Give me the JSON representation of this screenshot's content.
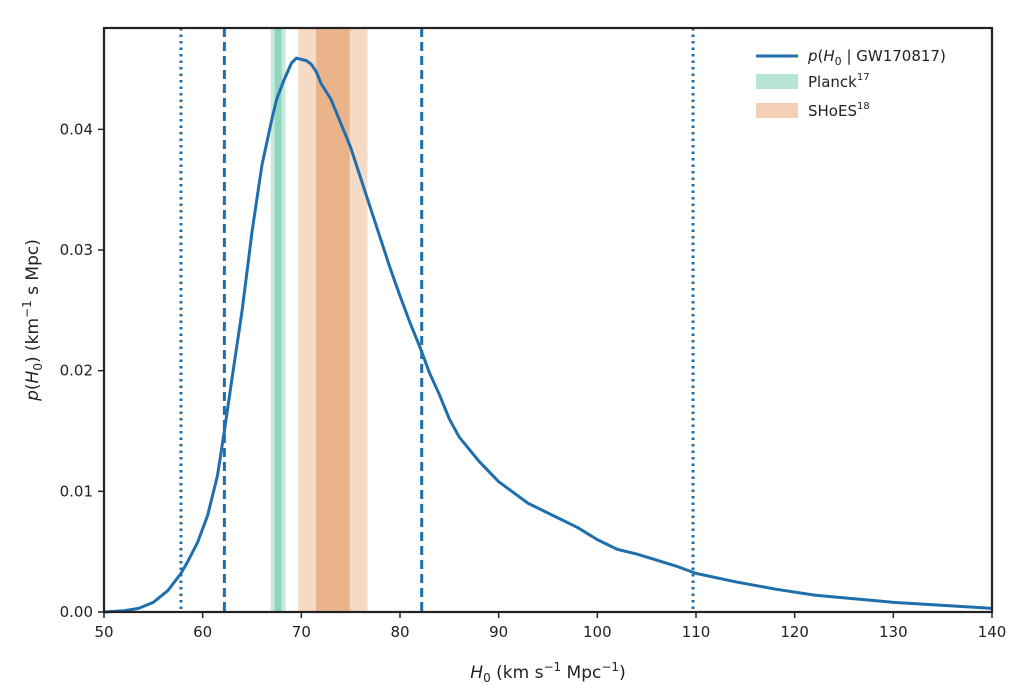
{
  "chart_data": {
    "type": "line",
    "xlabel": {
      "main": "H",
      "sub": "0",
      "paren_start": " (km s",
      "sup1": "−1",
      "mid": " Mpc",
      "sup2": "−1",
      "paren_end": ")"
    },
    "ylabel": {
      "p": "p",
      "paren_start": "(",
      "H": "H",
      "sub": "0",
      "paren_mid": ") (km",
      "sup": "−1",
      "paren_end": " s Mpc)"
    },
    "xlim": [
      50,
      140
    ],
    "ylim": [
      0,
      0.0484
    ],
    "xticks": [
      50,
      60,
      70,
      80,
      90,
      100,
      110,
      120,
      130,
      140
    ],
    "xtick_labels": [
      "50",
      "60",
      "70",
      "80",
      "90",
      "100",
      "110",
      "120",
      "130",
      "140"
    ],
    "yticks": [
      0,
      0.01,
      0.02,
      0.03,
      0.04
    ],
    "ytick_labels": [
      "0.00",
      "0.01",
      "0.02",
      "0.03",
      "0.04"
    ],
    "legend_position": "top-right",
    "grid": false,
    "series": [
      {
        "name": {
          "p": "p",
          "open": "(",
          "H": "H",
          "sub": "0",
          "rest": " | GW170817)"
        },
        "color": "#1f6fad",
        "x": [
          50,
          52,
          53.5,
          55,
          56.5,
          57.8,
          58.5,
          59.5,
          60.5,
          61.5,
          62.2,
          63,
          64,
          65,
          66,
          67,
          67.5,
          68.2,
          69,
          69.5,
          70,
          70.5,
          71,
          71.5,
          72,
          73,
          74,
          75,
          76,
          77,
          78,
          79,
          80,
          81,
          82,
          83,
          84,
          85,
          86,
          88,
          90,
          93,
          96,
          98,
          100,
          102,
          104,
          106,
          108,
          110,
          114,
          118,
          122,
          126,
          130,
          134,
          138,
          140
        ],
        "y": [
          0,
          0.0001,
          0.0003,
          0.0008,
          0.0018,
          0.0032,
          0.0042,
          0.0058,
          0.008,
          0.0113,
          0.015,
          0.0195,
          0.025,
          0.0315,
          0.037,
          0.0408,
          0.0425,
          0.044,
          0.0455,
          0.0459,
          0.0458,
          0.0457,
          0.0454,
          0.0448,
          0.0438,
          0.0425,
          0.0405,
          0.0385,
          0.036,
          0.0335,
          0.031,
          0.0285,
          0.0262,
          0.024,
          0.022,
          0.0198,
          0.018,
          0.016,
          0.0145,
          0.0125,
          0.0108,
          0.009,
          0.0078,
          0.007,
          0.006,
          0.0052,
          0.0048,
          0.0043,
          0.0038,
          0.0032,
          0.0025,
          0.0019,
          0.0014,
          0.0011,
          0.0008,
          0.0006,
          0.0004,
          0.0003
        ]
      }
    ],
    "vlines": [
      {
        "x": 57.8,
        "style": "dotted",
        "color": "#1f6fad"
      },
      {
        "x": 62.2,
        "style": "dashed",
        "color": "#1f6fad"
      },
      {
        "x": 82.2,
        "style": "dashed",
        "color": "#1f6fad"
      },
      {
        "x": 109.7,
        "style": "dotted",
        "color": "#1f6fad"
      }
    ],
    "bands": [
      {
        "name": {
          "base": "Planck",
          "sup": "17"
        },
        "color": "#5ec4a2",
        "outer": [
          66.9,
          68.4
        ],
        "inner": [
          67.3,
          68.0
        ]
      },
      {
        "name": {
          "base": "SHoES",
          "sup": "18"
        },
        "color": "#e2945a",
        "outer": [
          69.7,
          76.7
        ],
        "inner": [
          71.5,
          74.9
        ]
      }
    ]
  }
}
